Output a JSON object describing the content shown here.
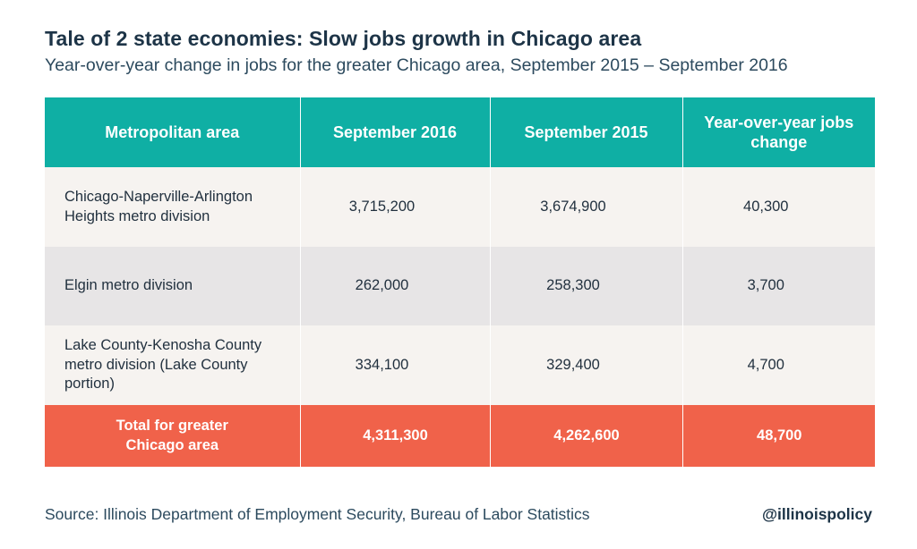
{
  "header": {
    "title": "Tale of 2 state economies: Slow jobs growth in Chicago area",
    "subtitle": "Year-over-year change in jobs for the greater Chicago area, September 2015 – September 2016"
  },
  "table": {
    "columns": [
      "Metropolitan area",
      "September 2016",
      "September 2015",
      "Year-over-year jobs change"
    ],
    "rows": [
      {
        "area": "Chicago-Naperville-Arlington Heights metro division",
        "sep2016": "3,715,200",
        "sep2015": "3,674,900",
        "change": "40,300"
      },
      {
        "area": "Elgin metro division",
        "sep2016": "262,000",
        "sep2015": "258,300",
        "change": "3,700"
      },
      {
        "area": "Lake County-Kenosha County metro division (Lake County portion)",
        "sep2016": "334,100",
        "sep2015": "329,400",
        "change": "4,700"
      }
    ],
    "total": {
      "area": "Total for greater Chicago area",
      "sep2016": "4,311,300",
      "sep2015": "4,262,600",
      "change": "48,700"
    }
  },
  "footer": {
    "source": "Source: Illinois Department of Employment Security, Bureau of Labor Statistics",
    "handle": "@illinoispolicy"
  },
  "colors": {
    "header_teal": "#0fafa4",
    "total_red": "#f0624a",
    "row_light": "#f6f3f0",
    "row_dark": "#e7e5e6",
    "title_navy": "#1d3447"
  }
}
